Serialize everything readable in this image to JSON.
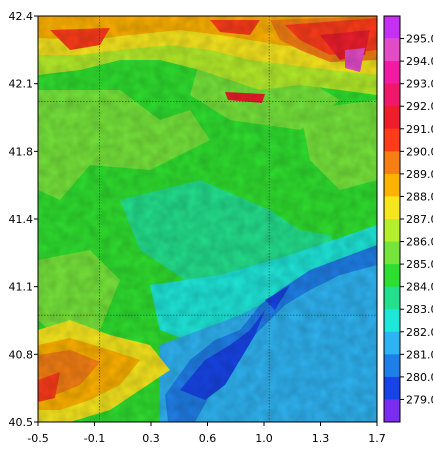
{
  "map": {
    "x_ticks": [
      "-0.5",
      "-0.1",
      "0.3",
      "0.6",
      "1.0",
      "1.3",
      "1.7"
    ],
    "y_ticks": [
      "42.4",
      "42.1",
      "41.8",
      "41.4",
      "41.1",
      "40.8",
      "40.5"
    ],
    "gridlines_lon": [
      -0.1,
      1.0
    ],
    "gridlines_lat": [
      42.0,
      41.0
    ],
    "colorbar": [
      {
        "label": "295.0",
        "color": "#e34cc6"
      },
      {
        "label": "294.0",
        "color": "#f21aa3"
      },
      {
        "label": "293.0",
        "color": "#f0186b"
      },
      {
        "label": "292.0",
        "color": "#ee1d2c"
      },
      {
        "label": "291.0",
        "color": "#ff3c1a"
      },
      {
        "label": "290.0",
        "color": "#f57f14"
      },
      {
        "label": "289.0",
        "color": "#ffb300"
      },
      {
        "label": "288.0",
        "color": "#f6e61e"
      },
      {
        "label": "287.0",
        "color": "#b5ee2a"
      },
      {
        "label": "286.0",
        "color": "#76e53b"
      },
      {
        "label": "285.0",
        "color": "#2fdf2f"
      },
      {
        "label": "284.0",
        "color": "#23e08d"
      },
      {
        "label": "283.0",
        "color": "#1ee7d9"
      },
      {
        "label": "282.0",
        "color": "#2fb4f3"
      },
      {
        "label": "281.0",
        "color": "#1f7fe8"
      },
      {
        "label": "280.0",
        "color": "#1744e6"
      },
      {
        "label": "279.0",
        "color": "#7a2cf0"
      }
    ],
    "colorbar_top_color": "#c431f2",
    "colorbar_bottom_color": "#7a1ff5"
  }
}
